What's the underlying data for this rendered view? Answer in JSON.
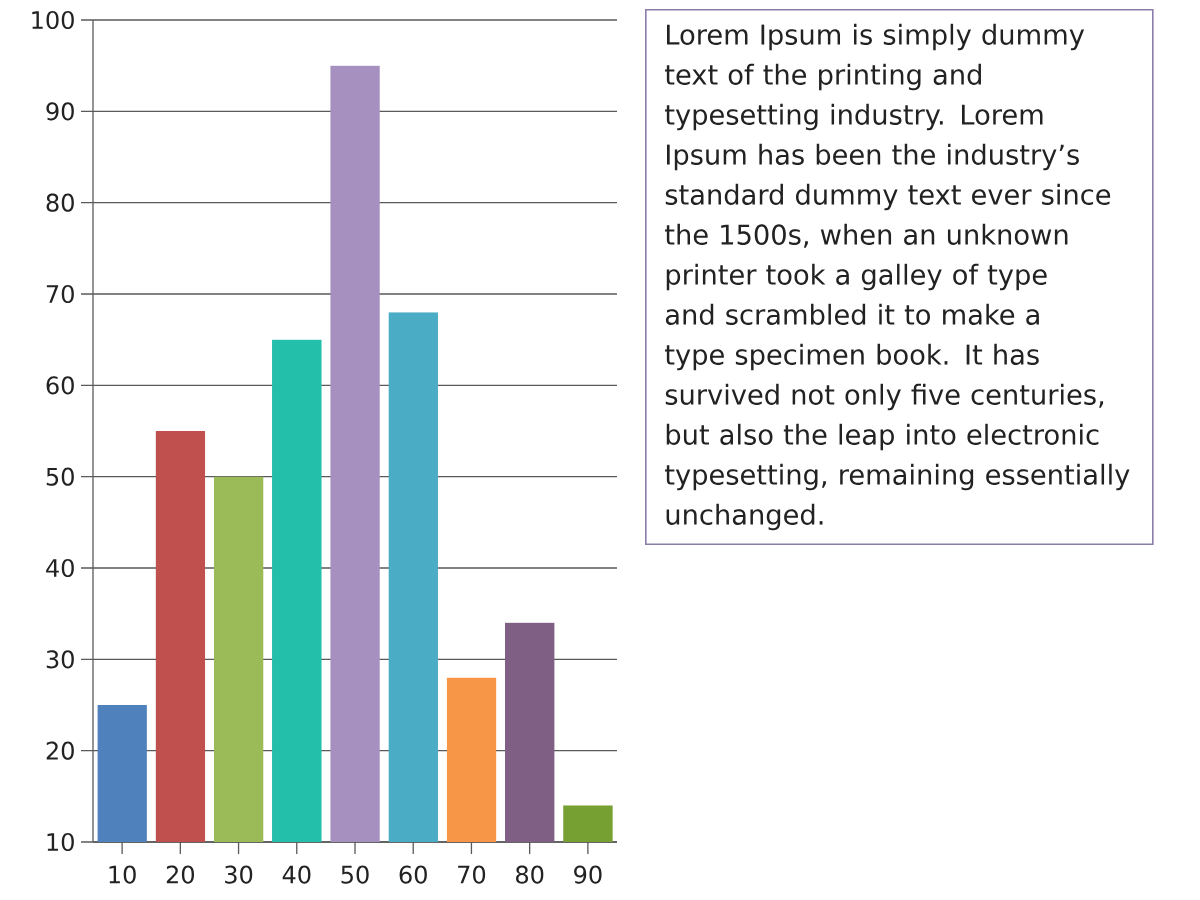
{
  "chart_data": {
    "type": "bar",
    "categories": [
      "10",
      "20",
      "30",
      "40",
      "50",
      "60",
      "70",
      "80",
      "90"
    ],
    "values": [
      25,
      55,
      50,
      65,
      95,
      68,
      28,
      34,
      14
    ],
    "colors": [
      "#4f81bc",
      "#c0504e",
      "#9bbb58",
      "#23bfaa",
      "#a690bf",
      "#4aacc5",
      "#f79647",
      "#7f6084",
      "#77a033"
    ],
    "ylim": [
      10,
      100
    ],
    "yticks": [
      10,
      20,
      30,
      40,
      50,
      60,
      70,
      80,
      90,
      100
    ],
    "grid": "y",
    "annotations": [
      "Lorem Ipsum is simply dummy text of the printing and typesetting industry. Lorem Ipsum has been the industry’s standard dummy text ever since the 1500s, when an unknown printer took a galley of type and scrambled it to make a type specimen book. It has survived not only five centuries, but also the leap into electronic typesetting, remaining essentially unchanged."
    ]
  }
}
